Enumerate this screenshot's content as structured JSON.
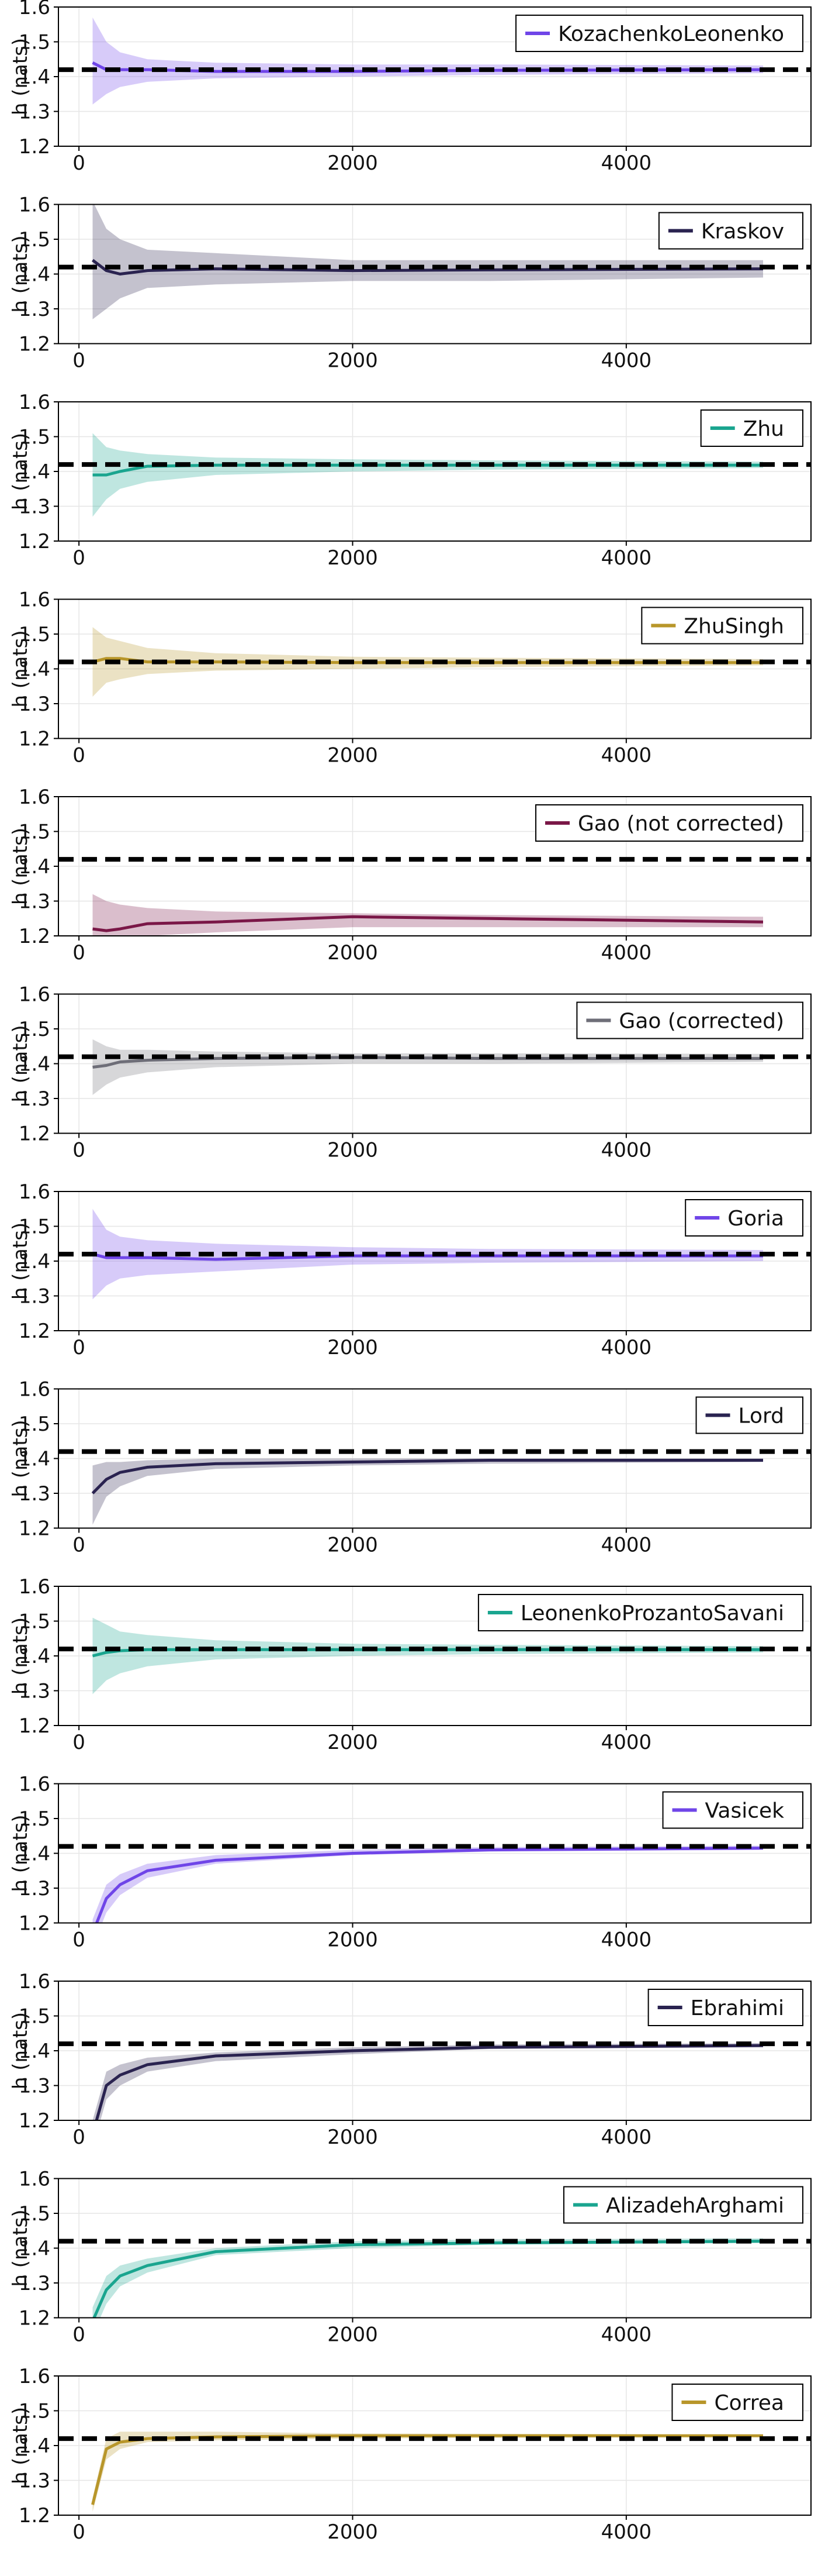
{
  "figure": {
    "shared": {
      "ylabel": "h (nats)",
      "yticks": [
        1.2,
        1.3,
        1.4,
        1.5,
        1.6
      ],
      "xticks": [
        0,
        2000,
        4000
      ],
      "xlim": [
        -150,
        5350
      ],
      "ylim": [
        1.2,
        1.6
      ],
      "reference_value": 1.42,
      "grid": true,
      "legend_position": "top-right"
    }
  },
  "chart_data": [
    {
      "type": "line",
      "title": "",
      "xlabel": "",
      "ylabel": "h (nats)",
      "series": [
        {
          "name": "KozachenkoLeonenko",
          "color": "#6f45e8",
          "x": [
            100,
            200,
            300,
            500,
            1000,
            2000,
            3000,
            5000
          ],
          "y": [
            1.44,
            1.42,
            1.42,
            1.42,
            1.415,
            1.415,
            1.418,
            1.42
          ],
          "lower": [
            1.32,
            1.35,
            1.37,
            1.385,
            1.395,
            1.4,
            1.405,
            1.41
          ],
          "upper": [
            1.57,
            1.5,
            1.47,
            1.45,
            1.44,
            1.435,
            1.435,
            1.432
          ]
        }
      ]
    },
    {
      "type": "line",
      "title": "",
      "xlabel": "",
      "ylabel": "h (nats)",
      "series": [
        {
          "name": "Kraskov",
          "color": "#2a2350",
          "x": [
            100,
            200,
            300,
            500,
            1000,
            2000,
            3000,
            5000
          ],
          "y": [
            1.44,
            1.41,
            1.4,
            1.41,
            1.415,
            1.41,
            1.412,
            1.415
          ],
          "lower": [
            1.27,
            1.3,
            1.33,
            1.36,
            1.37,
            1.38,
            1.38,
            1.39
          ],
          "upper": [
            1.61,
            1.53,
            1.5,
            1.47,
            1.46,
            1.44,
            1.44,
            1.44
          ]
        }
      ]
    },
    {
      "type": "line",
      "title": "",
      "xlabel": "",
      "ylabel": "h (nats)",
      "series": [
        {
          "name": "Zhu",
          "color": "#1aa58f",
          "x": [
            100,
            200,
            300,
            500,
            1000,
            2000,
            3000,
            5000
          ],
          "y": [
            1.39,
            1.39,
            1.4,
            1.415,
            1.418,
            1.418,
            1.418,
            1.418
          ],
          "lower": [
            1.27,
            1.32,
            1.35,
            1.37,
            1.39,
            1.4,
            1.405,
            1.41
          ],
          "upper": [
            1.51,
            1.47,
            1.46,
            1.45,
            1.44,
            1.435,
            1.432,
            1.428
          ]
        }
      ]
    },
    {
      "type": "line",
      "title": "",
      "xlabel": "",
      "ylabel": "h (nats)",
      "series": [
        {
          "name": "ZhuSingh",
          "color": "#b8962a",
          "x": [
            100,
            200,
            300,
            500,
            1000,
            2000,
            3000,
            5000
          ],
          "y": [
            1.42,
            1.43,
            1.43,
            1.42,
            1.42,
            1.418,
            1.418,
            1.418
          ],
          "lower": [
            1.32,
            1.36,
            1.37,
            1.385,
            1.395,
            1.4,
            1.405,
            1.41
          ],
          "upper": [
            1.52,
            1.49,
            1.48,
            1.46,
            1.445,
            1.435,
            1.432,
            1.428
          ]
        }
      ]
    },
    {
      "type": "line",
      "title": "",
      "xlabel": "",
      "ylabel": "h (nats)",
      "series": [
        {
          "name": "Gao (not corrected)",
          "color": "#7a1747",
          "x": [
            100,
            200,
            300,
            500,
            1000,
            2000,
            3000,
            5000
          ],
          "y": [
            1.22,
            1.215,
            1.22,
            1.235,
            1.24,
            1.255,
            1.25,
            1.24
          ],
          "lower": [
            1.2,
            1.2,
            1.2,
            1.2,
            1.21,
            1.225,
            1.225,
            1.225
          ],
          "upper": [
            1.32,
            1.3,
            1.29,
            1.28,
            1.27,
            1.265,
            1.26,
            1.255
          ]
        }
      ]
    },
    {
      "type": "line",
      "title": "",
      "xlabel": "",
      "ylabel": "h (nats)",
      "series": [
        {
          "name": "Gao (corrected)",
          "color": "#6e6e78",
          "x": [
            100,
            200,
            300,
            500,
            1000,
            2000,
            3000,
            5000
          ],
          "y": [
            1.39,
            1.395,
            1.405,
            1.41,
            1.415,
            1.418,
            1.415,
            1.415
          ],
          "lower": [
            1.31,
            1.34,
            1.36,
            1.375,
            1.39,
            1.4,
            1.4,
            1.405
          ],
          "upper": [
            1.47,
            1.45,
            1.44,
            1.44,
            1.435,
            1.43,
            1.43,
            1.428
          ]
        }
      ]
    },
    {
      "type": "line",
      "title": "",
      "xlabel": "",
      "ylabel": "h (nats)",
      "series": [
        {
          "name": "Goria",
          "color": "#6f45e8",
          "x": [
            100,
            200,
            300,
            500,
            1000,
            2000,
            3000,
            5000
          ],
          "y": [
            1.42,
            1.41,
            1.41,
            1.41,
            1.405,
            1.415,
            1.415,
            1.415
          ],
          "lower": [
            1.29,
            1.33,
            1.35,
            1.36,
            1.37,
            1.39,
            1.395,
            1.4
          ],
          "upper": [
            1.55,
            1.49,
            1.47,
            1.46,
            1.45,
            1.44,
            1.435,
            1.432
          ]
        }
      ]
    },
    {
      "type": "line",
      "title": "",
      "xlabel": "",
      "ylabel": "h (nats)",
      "series": [
        {
          "name": "Lord",
          "color": "#2a2350",
          "x": [
            100,
            200,
            300,
            500,
            1000,
            2000,
            3000,
            5000
          ],
          "y": [
            1.3,
            1.34,
            1.36,
            1.375,
            1.385,
            1.39,
            1.395,
            1.395
          ],
          "lower": [
            1.21,
            1.29,
            1.32,
            1.35,
            1.37,
            1.38,
            1.385,
            1.39
          ],
          "upper": [
            1.38,
            1.39,
            1.39,
            1.395,
            1.4,
            1.4,
            1.4,
            1.4
          ]
        }
      ]
    },
    {
      "type": "line",
      "title": "",
      "xlabel": "",
      "ylabel": "h (nats)",
      "series": [
        {
          "name": "LeonenkoProzantoSavani",
          "color": "#1aa58f",
          "x": [
            100,
            200,
            300,
            500,
            1000,
            2000,
            3000,
            5000
          ],
          "y": [
            1.4,
            1.41,
            1.415,
            1.418,
            1.418,
            1.418,
            1.418,
            1.418
          ],
          "lower": [
            1.29,
            1.33,
            1.35,
            1.37,
            1.39,
            1.4,
            1.405,
            1.41
          ],
          "upper": [
            1.51,
            1.49,
            1.47,
            1.46,
            1.445,
            1.435,
            1.432,
            1.428
          ]
        }
      ]
    },
    {
      "type": "line",
      "title": "",
      "xlabel": "",
      "ylabel": "h (nats)",
      "series": [
        {
          "name": "Vasicek",
          "color": "#6f45e8",
          "x": [
            100,
            200,
            300,
            500,
            1000,
            2000,
            3000,
            5000
          ],
          "y": [
            1.17,
            1.27,
            1.31,
            1.35,
            1.38,
            1.4,
            1.41,
            1.415
          ],
          "lower": [
            1.13,
            1.23,
            1.28,
            1.33,
            1.37,
            1.395,
            1.405,
            1.41
          ],
          "upper": [
            1.21,
            1.31,
            1.34,
            1.37,
            1.395,
            1.41,
            1.418,
            1.422
          ]
        }
      ]
    },
    {
      "type": "line",
      "title": "",
      "xlabel": "",
      "ylabel": "h (nats)",
      "series": [
        {
          "name": "Ebrahimi",
          "color": "#2a2350",
          "x": [
            100,
            200,
            300,
            500,
            1000,
            2000,
            3000,
            5000
          ],
          "y": [
            1.16,
            1.3,
            1.33,
            1.36,
            1.385,
            1.4,
            1.41,
            1.415
          ],
          "lower": [
            1.12,
            1.26,
            1.3,
            1.34,
            1.37,
            1.39,
            1.405,
            1.41
          ],
          "upper": [
            1.2,
            1.34,
            1.36,
            1.38,
            1.395,
            1.41,
            1.418,
            1.422
          ]
        }
      ]
    },
    {
      "type": "line",
      "title": "",
      "xlabel": "",
      "ylabel": "h (nats)",
      "series": [
        {
          "name": "AlizadehArghami",
          "color": "#1aa58f",
          "x": [
            100,
            200,
            300,
            500,
            1000,
            2000,
            3000,
            5000
          ],
          "y": [
            1.19,
            1.28,
            1.32,
            1.35,
            1.39,
            1.41,
            1.415,
            1.42
          ],
          "lower": [
            1.15,
            1.24,
            1.29,
            1.33,
            1.38,
            1.4,
            1.41,
            1.415
          ],
          "upper": [
            1.23,
            1.32,
            1.35,
            1.37,
            1.4,
            1.42,
            1.425,
            1.428
          ]
        }
      ]
    },
    {
      "type": "line",
      "title": "",
      "xlabel": "",
      "ylabel": "h (nats)",
      "series": [
        {
          "name": "Correa",
          "color": "#b8962a",
          "x": [
            100,
            200,
            300,
            500,
            1000,
            2000,
            3000,
            5000
          ],
          "y": [
            1.23,
            1.39,
            1.41,
            1.42,
            1.425,
            1.428,
            1.428,
            1.428
          ],
          "lower": [
            1.21,
            1.36,
            1.39,
            1.41,
            1.415,
            1.42,
            1.422,
            1.424
          ],
          "upper": [
            1.25,
            1.42,
            1.44,
            1.44,
            1.44,
            1.435,
            1.434,
            1.432
          ]
        }
      ]
    }
  ]
}
